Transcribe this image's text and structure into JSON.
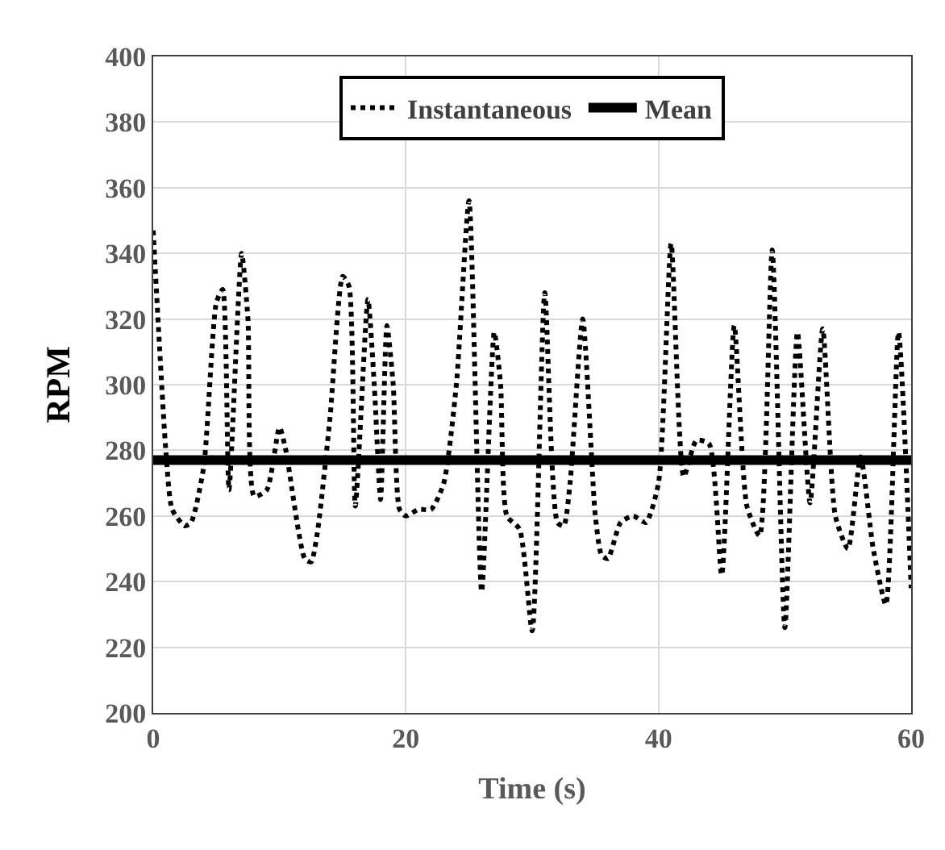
{
  "chart_data": {
    "type": "line",
    "xlabel": "Time (s)",
    "ylabel": "RPM",
    "xlim": [
      0,
      60
    ],
    "xticks": [
      0,
      20,
      40,
      60
    ],
    "ylim": [
      200,
      400
    ],
    "yticks": [
      200,
      220,
      240,
      260,
      280,
      300,
      320,
      340,
      360,
      380,
      400
    ],
    "grid": true,
    "legend": "top",
    "series": [
      {
        "name": "Instantaneous",
        "color": "#000000",
        "line_style": "dotted",
        "x": [
          0,
          1,
          1.5,
          2.5,
          3,
          4,
          5,
          5.5,
          6,
          7,
          7.5,
          8,
          9,
          10,
          10.5,
          12,
          12.5,
          13,
          14,
          15,
          15.5,
          16,
          17,
          17.5,
          18,
          18.5,
          19,
          19.5,
          20,
          21,
          22,
          23,
          24,
          25,
          26,
          27,
          27.5,
          28,
          29,
          30,
          31,
          32,
          32.5,
          33,
          34,
          35,
          35.5,
          36,
          37,
          38,
          39,
          40,
          41,
          42,
          43,
          44,
          45,
          46,
          47,
          48,
          49,
          50,
          51,
          52,
          53,
          54,
          55,
          56,
          57,
          58,
          59,
          60
        ],
        "values": [
          347,
          280,
          262,
          257,
          258,
          275,
          325,
          329,
          268,
          340,
          320,
          266,
          268,
          287,
          280,
          247,
          246,
          255,
          290,
          333,
          330,
          263,
          326,
          300,
          265,
          318,
          300,
          262,
          260,
          262,
          262,
          270,
          300,
          356,
          237,
          316,
          300,
          260,
          256,
          225,
          328,
          258,
          257,
          270,
          320,
          260,
          248,
          247,
          258,
          260,
          258,
          270,
          343,
          272,
          283,
          282,
          242,
          318,
          263,
          254,
          341,
          226,
          316,
          264,
          317,
          260,
          250,
          278,
          250,
          233,
          316,
          238
        ]
      },
      {
        "name": "Mean",
        "color": "#000000",
        "line_style": "solid",
        "x": [
          0,
          60
        ],
        "values": [
          277,
          277
        ]
      }
    ]
  }
}
